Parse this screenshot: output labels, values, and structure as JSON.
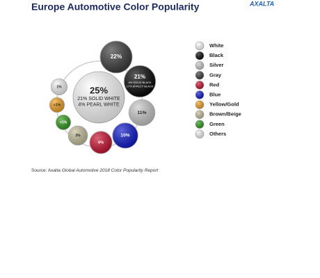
{
  "chart_data": {
    "type": "bubble-ring",
    "title": "Europe Automotive Color Popularity",
    "logo": "AXALTA",
    "source": [
      "Source: Axalta",
      "Global Automotive 2018 Color Popularity Report"
    ],
    "series": [
      {
        "name": "White",
        "color": "#ffffff",
        "value": 25,
        "value_label": "25%",
        "notes": [
          "21% SOLID WHITE",
          "4% PEARL WHITE"
        ]
      },
      {
        "name": "Black",
        "color": "#050505",
        "value": 21,
        "value_label": "21%",
        "notes": [
          "4% SOLID BLACK",
          "17% EFFECT BLACK"
        ]
      },
      {
        "name": "Silver",
        "color": "#c9c9c9",
        "value": 11,
        "value_label": "11%"
      },
      {
        "name": "Gray",
        "color": "#3b3b3b",
        "value": 22,
        "value_label": "22%"
      },
      {
        "name": "Red",
        "color": "#c8102e",
        "value": 6,
        "value_label": "6%"
      },
      {
        "name": "Blue",
        "color": "#0c17c9",
        "value": 10,
        "value_label": "10%"
      },
      {
        "name": "Yellow/Gold",
        "color": "#f0a020",
        "value": 0.5,
        "value_label": "<1%"
      },
      {
        "name": "Brown/Beige",
        "color": "#c4c09c",
        "value": 3,
        "value_label": "3%"
      },
      {
        "name": "Green",
        "color": "#2f9a1c",
        "value": 0.5,
        "value_label": "<1%"
      },
      {
        "name": "Others",
        "color": "#f4f4f4",
        "value": 1,
        "value_label": "1%"
      }
    ]
  }
}
